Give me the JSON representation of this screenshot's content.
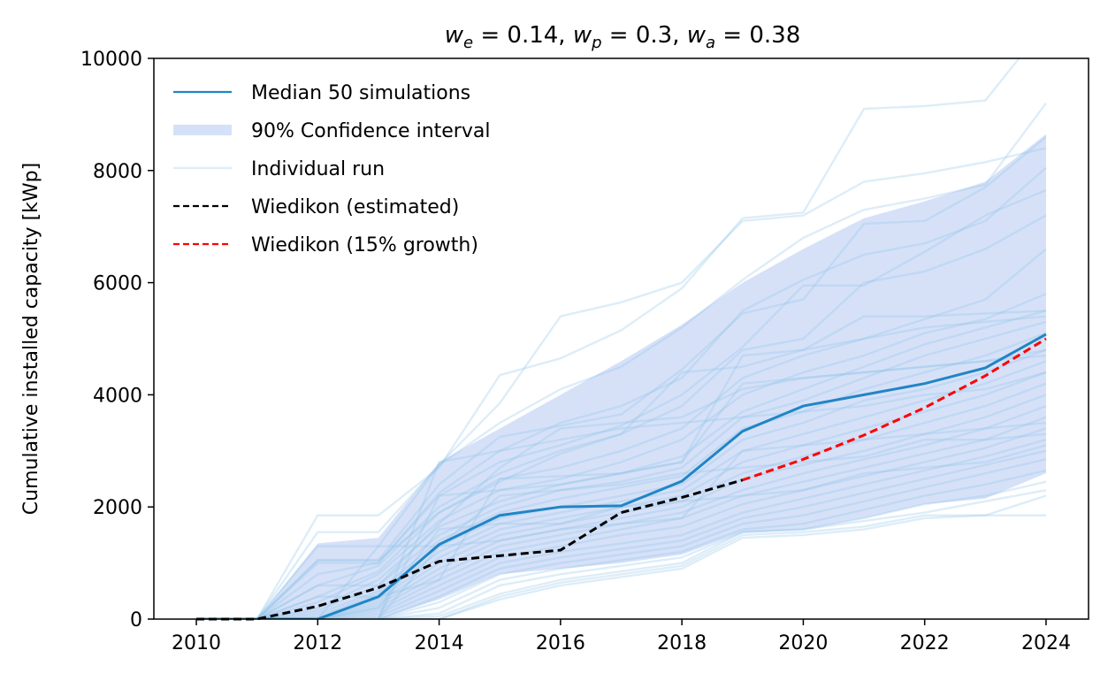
{
  "chart_data": {
    "type": "line",
    "title_parts": [
      {
        "text": "w",
        "italic": true
      },
      {
        "text": "e",
        "italic": true,
        "sub": true
      },
      {
        "text": " = 0.14, ",
        "italic": false
      },
      {
        "text": "w",
        "italic": true
      },
      {
        "text": "p",
        "italic": true,
        "sub": true
      },
      {
        "text": " = 0.3, ",
        "italic": false
      },
      {
        "text": "w",
        "italic": true
      },
      {
        "text": "a",
        "italic": true,
        "sub": true
      },
      {
        "text": " = 0.38",
        "italic": false
      }
    ],
    "xlabel": "",
    "ylabel": "Cumulative installed capacity [kWp]",
    "xlim": [
      2009.3,
      2024.7
    ],
    "ylim": [
      0,
      10000
    ],
    "xticks": [
      2010,
      2012,
      2014,
      2016,
      2018,
      2020,
      2022,
      2024
    ],
    "yticks": [
      0,
      2000,
      4000,
      6000,
      8000,
      10000
    ],
    "grid": false,
    "legend_position": "top-left",
    "colors": {
      "median": "#2185c5",
      "ci_fill": "#6d95e6",
      "individual": "#8ec3e8",
      "estimated": "#000000",
      "growth": "#ff0000"
    },
    "median": {
      "name": "Median 50 simulations",
      "x": [
        2010,
        2011,
        2012,
        2013,
        2014,
        2015,
        2016,
        2017,
        2018,
        2019,
        2020,
        2021,
        2022,
        2023,
        2024
      ],
      "y": [
        0,
        0,
        0,
        400,
        1330,
        1850,
        2000,
        2020,
        2460,
        3350,
        3800,
        4000,
        4200,
        4480,
        5080
      ]
    },
    "confidence_interval": {
      "name": "90% Confidence interval",
      "x": [
        2010,
        2011,
        2012,
        2013,
        2014,
        2015,
        2016,
        2017,
        2018,
        2019,
        2020,
        2021,
        2022,
        2023,
        2024
      ],
      "lower": [
        0,
        0,
        0,
        0,
        350,
        800,
        900,
        1000,
        1150,
        1550,
        1600,
        1800,
        2050,
        2150,
        2600
      ],
      "upper": [
        0,
        0,
        1350,
        1450,
        2800,
        3400,
        4000,
        4600,
        5250,
        6000,
        6600,
        7150,
        7450,
        7800,
        8650
      ]
    },
    "individual_runs_label": "Individual run",
    "individual_runs": [
      [
        0,
        0,
        1850,
        1850,
        2700,
        4350,
        4650,
        5150,
        5900,
        7150,
        7250,
        9100,
        9150,
        9250,
        10600
      ],
      [
        0,
        0,
        1550,
        1550,
        2750,
        3850,
        5400,
        5650,
        6000,
        7100,
        7200,
        7800,
        7950,
        8150,
        8400
      ],
      [
        0,
        0,
        1300,
        1300,
        2750,
        3500,
        4100,
        4500,
        5200,
        6050,
        6800,
        7300,
        7500,
        7750,
        9200
      ],
      [
        0,
        0,
        1050,
        1050,
        2400,
        3250,
        3450,
        3650,
        4450,
        5450,
        5700,
        7050,
        7100,
        7700,
        8600
      ],
      [
        0,
        0,
        1000,
        1000,
        2250,
        3000,
        3500,
        3800,
        4300,
        5500,
        6050,
        6500,
        6700,
        7100,
        8050
      ],
      [
        0,
        0,
        800,
        1000,
        2200,
        2800,
        3100,
        3450,
        4000,
        4850,
        5950,
        5950,
        6550,
        7200,
        7650
      ],
      [
        0,
        0,
        600,
        950,
        2000,
        2600,
        3000,
        3300,
        3800,
        4800,
        5000,
        6000,
        6200,
        6600,
        7200
      ],
      [
        0,
        0,
        400,
        850,
        1900,
        2500,
        2700,
        3000,
        3400,
        4300,
        4700,
        5000,
        5350,
        5700,
        6600
      ],
      [
        0,
        0,
        300,
        800,
        1750,
        2300,
        2500,
        2800,
        3200,
        4000,
        4400,
        4700,
        5100,
        5350,
        5800
      ],
      [
        0,
        0,
        200,
        700,
        1650,
        2100,
        2400,
        2600,
        2900,
        3700,
        4100,
        4500,
        4900,
        5200,
        5500
      ],
      [
        0,
        0,
        150,
        600,
        1500,
        2000,
        2300,
        2450,
        2700,
        3600,
        3900,
        4300,
        4700,
        5000,
        5300
      ],
      [
        0,
        0,
        100,
        500,
        1400,
        1900,
        2150,
        2350,
        2550,
        3400,
        3700,
        4100,
        4400,
        4700,
        5100
      ],
      [
        0,
        0,
        50,
        450,
        1300,
        1800,
        2000,
        2200,
        2400,
        3200,
        3500,
        3900,
        4100,
        4400,
        4800
      ],
      [
        0,
        0,
        0,
        400,
        1200,
        1700,
        1900,
        2100,
        2300,
        3000,
        3300,
        3600,
        3900,
        4200,
        4600
      ],
      [
        0,
        0,
        0,
        350,
        1100,
        1600,
        1800,
        2000,
        2200,
        2800,
        3100,
        3400,
        3700,
        4000,
        4400
      ],
      [
        0,
        0,
        0,
        300,
        1000,
        1500,
        1700,
        1900,
        2100,
        2600,
        2900,
        3200,
        3500,
        3800,
        4200
      ],
      [
        0,
        0,
        0,
        250,
        900,
        1400,
        1600,
        1800,
        2000,
        2500,
        2750,
        3000,
        3300,
        3600,
        4000
      ],
      [
        0,
        0,
        0,
        200,
        800,
        1300,
        1500,
        1700,
        1900,
        2300,
        2600,
        2850,
        3100,
        3400,
        3800
      ],
      [
        0,
        0,
        0,
        150,
        700,
        1200,
        1400,
        1600,
        1800,
        2200,
        2450,
        2700,
        2950,
        3200,
        3600
      ],
      [
        0,
        0,
        0,
        100,
        600,
        1100,
        1300,
        1500,
        1650,
        2050,
        2300,
        2550,
        2800,
        3050,
        3400
      ],
      [
        0,
        0,
        0,
        50,
        500,
        1000,
        1200,
        1350,
        1500,
        1900,
        2150,
        2400,
        2650,
        2900,
        3200
      ],
      [
        0,
        0,
        0,
        0,
        400,
        900,
        1100,
        1250,
        1400,
        1800,
        2000,
        2250,
        2500,
        2750,
        3000
      ],
      [
        0,
        0,
        0,
        0,
        300,
        800,
        1000,
        1150,
        1300,
        1700,
        1850,
        2100,
        2350,
        2600,
        2850
      ],
      [
        0,
        0,
        0,
        0,
        200,
        700,
        900,
        1050,
        1200,
        1600,
        1700,
        1950,
        2200,
        2400,
        2650
      ],
      [
        0,
        0,
        0,
        0,
        100,
        600,
        800,
        950,
        1100,
        1550,
        1600,
        1800,
        2050,
        2200,
        2450
      ],
      [
        0,
        0,
        0,
        0,
        50,
        450,
        700,
        850,
        1000,
        1550,
        1600,
        1750,
        1900,
        2100,
        2300
      ],
      [
        0,
        0,
        0,
        0,
        0,
        400,
        650,
        800,
        950,
        1500,
        1550,
        1650,
        1850,
        1850,
        1850
      ],
      [
        0,
        0,
        0,
        0,
        0,
        350,
        600,
        750,
        900,
        1450,
        1500,
        1600,
        1800,
        1850,
        2200
      ],
      [
        0,
        0,
        1050,
        1050,
        1900,
        2450,
        2950,
        3300,
        4400,
        4500,
        4800,
        5400,
        5400,
        5450,
        5500
      ],
      [
        0,
        0,
        0,
        0,
        2800,
        3000,
        3200,
        3400,
        3500,
        3600,
        3700,
        3800,
        4000,
        4100,
        4400
      ],
      [
        0,
        0,
        0,
        1300,
        1300,
        1400,
        1600,
        1700,
        1800,
        3000,
        3100,
        3200,
        3300,
        3400,
        3500
      ],
      [
        0,
        0,
        0,
        0,
        1300,
        2200,
        2300,
        2400,
        2600,
        2700,
        2800,
        2900,
        3200,
        3200,
        3300
      ],
      [
        0,
        0,
        400,
        400,
        700,
        2500,
        2550,
        2600,
        2800,
        4200,
        4300,
        4400,
        4500,
        4600,
        4800
      ],
      [
        0,
        0,
        0,
        200,
        1600,
        1700,
        1700,
        2000,
        2100,
        2200,
        2300,
        2600,
        2700,
        2800,
        3100
      ],
      [
        0,
        0,
        600,
        600,
        1700,
        2700,
        3400,
        3500,
        3600,
        4100,
        4300,
        4400,
        4500,
        4600,
        4700
      ],
      [
        0,
        0,
        0,
        0,
        2200,
        2300,
        2400,
        2600,
        2800,
        4700,
        4800,
        5000,
        5200,
        5300,
        5400
      ]
    ],
    "estimated": {
      "name": "Wiedikon (estimated)",
      "x": [
        2010,
        2011,
        2012,
        2013,
        2014,
        2015,
        2016,
        2017,
        2018,
        2019
      ],
      "y": [
        0,
        0,
        230,
        560,
        1030,
        1130,
        1230,
        1900,
        2170,
        2480
      ]
    },
    "growth": {
      "name": "Wiedikon (15% growth)",
      "x": [
        2019,
        2020,
        2021,
        2022,
        2023,
        2024
      ],
      "y": [
        2480,
        2850,
        3280,
        3770,
        4340,
        5000
      ]
    }
  }
}
